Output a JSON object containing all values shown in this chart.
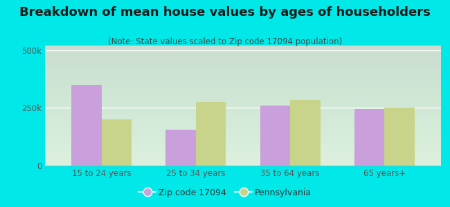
{
  "title": "Breakdown of mean house values by ages of householders",
  "subtitle": "(Note: State values scaled to Zip code 17094 population)",
  "categories": [
    "15 to 24 years",
    "25 to 34 years",
    "35 to 64 years",
    "65 years+"
  ],
  "zip_values": [
    350000,
    155000,
    260000,
    245000
  ],
  "pa_values": [
    200000,
    275000,
    285000,
    252000
  ],
  "zip_color": "#c9a0dc",
  "pa_color": "#c8d48a",
  "background_outer": "#00e8e8",
  "background_plot_top": "#f0f8f0",
  "background_plot_bottom": "#d8f0d8",
  "ylim": [
    0,
    520000
  ],
  "yticks": [
    0,
    250000,
    500000
  ],
  "ytick_labels": [
    "0",
    "250k",
    "500k"
  ],
  "legend_zip_label": "Zip code 17094",
  "legend_pa_label": "Pennsylvania",
  "bar_width": 0.32,
  "title_fontsize": 13,
  "subtitle_fontsize": 8.5,
  "tick_fontsize": 8.5,
  "legend_fontsize": 9,
  "title_color": "#1a1a1a",
  "subtitle_color": "#444444",
  "tick_color": "#555555"
}
